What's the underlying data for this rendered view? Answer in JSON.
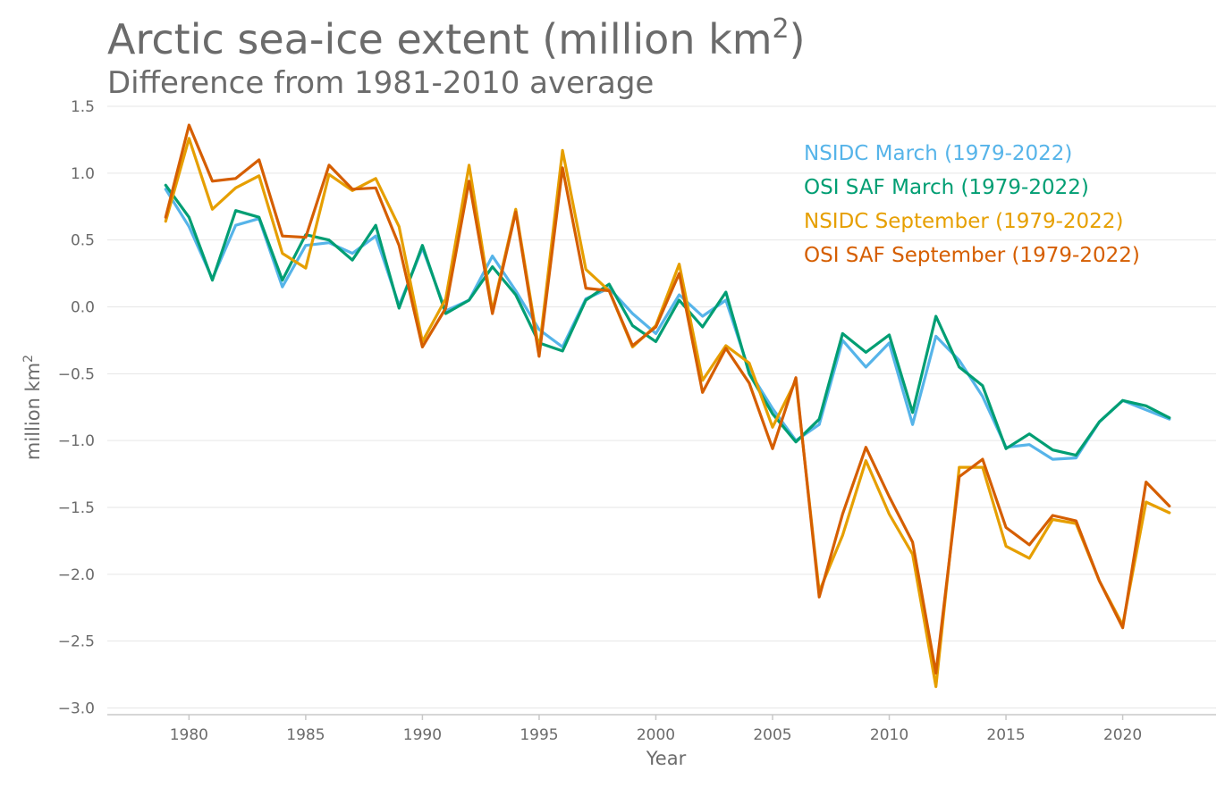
{
  "title": "Arctic sea-ice extent (million km",
  "title_sup": "2",
  "title_end": ")",
  "subtitle": "Difference from 1981-2010 average",
  "chart_data": {
    "type": "line",
    "title": "Arctic sea-ice extent (million km²)",
    "subtitle": "Difference from 1981-2010 average",
    "xlabel": "Year",
    "ylabel": "million km²",
    "ylabel_main": "million km",
    "ylabel_sup": "2",
    "xlim": [
      1976.5,
      2024
    ],
    "ylim": [
      -3.05,
      1.5
    ],
    "xticks": [
      1980,
      1985,
      1990,
      1995,
      2000,
      2005,
      2010,
      2015,
      2020
    ],
    "yticks": [
      1.5,
      1.0,
      0.5,
      0.0,
      -0.5,
      -1.0,
      -1.5,
      -2.0,
      -2.5,
      -3.0
    ],
    "ytick_labels": [
      "1.5",
      "1.0",
      "0.5",
      "0.0",
      "−0.5",
      "−1.0",
      "−1.5",
      "−2.0",
      "−2.5",
      "−3.0"
    ],
    "grid": true,
    "legend_position": "top-right",
    "x": [
      1979,
      1980,
      1981,
      1982,
      1983,
      1984,
      1985,
      1986,
      1987,
      1988,
      1989,
      1990,
      1991,
      1992,
      1993,
      1994,
      1995,
      1996,
      1997,
      1998,
      1999,
      2000,
      2001,
      2002,
      2003,
      2004,
      2005,
      2006,
      2007,
      2008,
      2009,
      2010,
      2011,
      2012,
      2013,
      2014,
      2015,
      2016,
      2017,
      2018,
      2019,
      2020,
      2021,
      2022
    ],
    "series": [
      {
        "name": "NSIDC March (1979-2022)",
        "color": "#56b4e9",
        "values": [
          0.88,
          0.6,
          0.21,
          0.61,
          0.66,
          0.15,
          0.46,
          0.48,
          0.4,
          0.53,
          0.01,
          0.44,
          -0.03,
          0.05,
          0.38,
          0.12,
          -0.17,
          -0.3,
          0.06,
          0.14,
          -0.05,
          -0.2,
          0.09,
          -0.07,
          0.05,
          -0.48,
          -0.76,
          -1.0,
          -0.88,
          -0.25,
          -0.45,
          -0.27,
          -0.88,
          -0.22,
          -0.4,
          -0.67,
          -1.05,
          -1.03,
          -1.14,
          -1.13,
          -0.86,
          -0.7,
          -0.77,
          -0.84
        ]
      },
      {
        "name": "OSI SAF March (1979-2022)",
        "color": "#009e73",
        "values": [
          0.91,
          0.67,
          0.2,
          0.72,
          0.67,
          0.2,
          0.54,
          0.5,
          0.35,
          0.61,
          -0.01,
          0.46,
          -0.05,
          0.05,
          0.3,
          0.09,
          -0.27,
          -0.33,
          0.05,
          0.17,
          -0.14,
          -0.26,
          0.05,
          -0.15,
          0.11,
          -0.5,
          -0.8,
          -1.01,
          -0.84,
          -0.2,
          -0.34,
          -0.21,
          -0.79,
          -0.07,
          -0.45,
          -0.59,
          -1.06,
          -0.95,
          -1.07,
          -1.11,
          -0.86,
          -0.7,
          -0.74,
          -0.83
        ]
      },
      {
        "name": "NSIDC September (1979-2022)",
        "color": "#e69f00",
        "values": [
          0.64,
          1.26,
          0.73,
          0.89,
          0.98,
          0.4,
          0.29,
          0.99,
          0.87,
          0.96,
          0.6,
          -0.26,
          0.06,
          1.06,
          -0.03,
          0.73,
          -0.33,
          1.17,
          0.28,
          0.12,
          -0.3,
          -0.14,
          0.32,
          -0.55,
          -0.29,
          -0.42,
          -0.9,
          -0.55,
          -2.13,
          -1.71,
          -1.15,
          -1.55,
          -1.85,
          -2.84,
          -1.2,
          -1.2,
          -1.79,
          -1.88,
          -1.59,
          -1.62,
          -2.05,
          -2.38,
          -1.46,
          -1.54
        ]
      },
      {
        "name": "OSI SAF September (1979-2022)",
        "color": "#d55e00",
        "values": [
          0.67,
          1.36,
          0.94,
          0.96,
          1.1,
          0.53,
          0.52,
          1.06,
          0.88,
          0.89,
          0.46,
          -0.3,
          -0.01,
          0.94,
          -0.05,
          0.71,
          -0.37,
          1.04,
          0.14,
          0.12,
          -0.29,
          -0.15,
          0.25,
          -0.64,
          -0.31,
          -0.57,
          -1.06,
          -0.53,
          -2.17,
          -1.55,
          -1.05,
          -1.42,
          -1.76,
          -2.74,
          -1.27,
          -1.14,
          -1.65,
          -1.78,
          -1.56,
          -1.6,
          -2.05,
          -2.4,
          -1.31,
          -1.49
        ]
      }
    ]
  }
}
